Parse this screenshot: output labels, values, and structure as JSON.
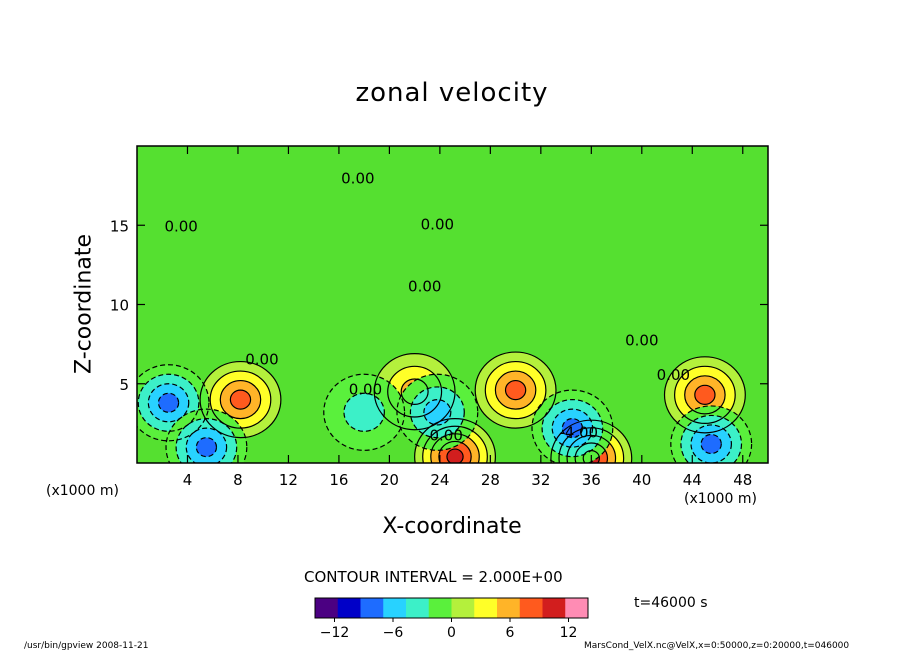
{
  "chart_data": {
    "type": "heatmap",
    "title": "zonal velocity",
    "xlabel": "X-coordinate",
    "ylabel": "Z-coordinate",
    "x_unit": "(x1000 m)",
    "y_unit": "(x1000 m)",
    "xlim": [
      0,
      50
    ],
    "ylim": [
      0,
      20
    ],
    "x_ticks": [
      4,
      8,
      12,
      16,
      20,
      24,
      28,
      32,
      36,
      40,
      44,
      48
    ],
    "y_ticks": [
      5,
      10,
      15
    ],
    "contour_interval_text": "CONTOUR INTERVAL = 2.000E+00",
    "time_text": "t=46000 s",
    "colorbar": {
      "range": [
        -14,
        14
      ],
      "ticks": [
        -12,
        -6,
        0,
        6,
        12
      ],
      "palette": [
        "#4b0082",
        "#0000c8",
        "#1e6cff",
        "#28d2ff",
        "#3cf0c8",
        "#5af03c",
        "#b4f03c",
        "#ffff28",
        "#ffb428",
        "#ff5a1e",
        "#d21e1e",
        "#ff8cb4"
      ]
    },
    "contour_labels": [
      {
        "text": "0.00",
        "x": 17.5,
        "y": 18.0
      },
      {
        "text": "0.00",
        "x": 3.5,
        "y": 15.0
      },
      {
        "text": "0.00",
        "x": 23.8,
        "y": 15.1
      },
      {
        "text": "0.00",
        "x": 22.8,
        "y": 11.2
      },
      {
        "text": "0.00",
        "x": 40.0,
        "y": 7.8
      },
      {
        "text": "0.00",
        "x": 9.9,
        "y": 6.6
      },
      {
        "text": "0.00",
        "x": 18.1,
        "y": 4.7
      },
      {
        "text": "0.00",
        "x": 42.5,
        "y": 5.6
      },
      {
        "text": "0.00",
        "x": 24.5,
        "y": 1.8
      },
      {
        "text": "-4.00",
        "x": 35.0,
        "y": 2.0
      }
    ],
    "features": [
      {
        "kind": "max",
        "x": 8.2,
        "y": 4.0,
        "value": 8
      },
      {
        "kind": "max",
        "x": 22.0,
        "y": 4.5,
        "value": 6
      },
      {
        "kind": "max",
        "x": 30.0,
        "y": 4.6,
        "value": 8
      },
      {
        "kind": "max",
        "x": 45.0,
        "y": 4.3,
        "value": 8
      },
      {
        "kind": "max",
        "x": 25.2,
        "y": 0.4,
        "value": 10
      },
      {
        "kind": "max",
        "x": 36.0,
        "y": 0.3,
        "value": 10
      },
      {
        "kind": "min",
        "x": 2.5,
        "y": 3.8,
        "value": -8
      },
      {
        "kind": "min",
        "x": 5.5,
        "y": 1.0,
        "value": -8
      },
      {
        "kind": "min",
        "x": 23.8,
        "y": 3.2,
        "value": -6
      },
      {
        "kind": "min",
        "x": 34.5,
        "y": 2.2,
        "value": -8
      },
      {
        "kind": "min",
        "x": 45.5,
        "y": 1.2,
        "value": -8
      },
      {
        "kind": "min",
        "x": 18.0,
        "y": 3.2,
        "value": -4
      }
    ]
  },
  "footer": {
    "left": "/usr/bin/gpview   2008-11-21",
    "right": "MarsCond_VelX.nc@VelX,x=0:50000,z=0:20000,t=046000"
  }
}
